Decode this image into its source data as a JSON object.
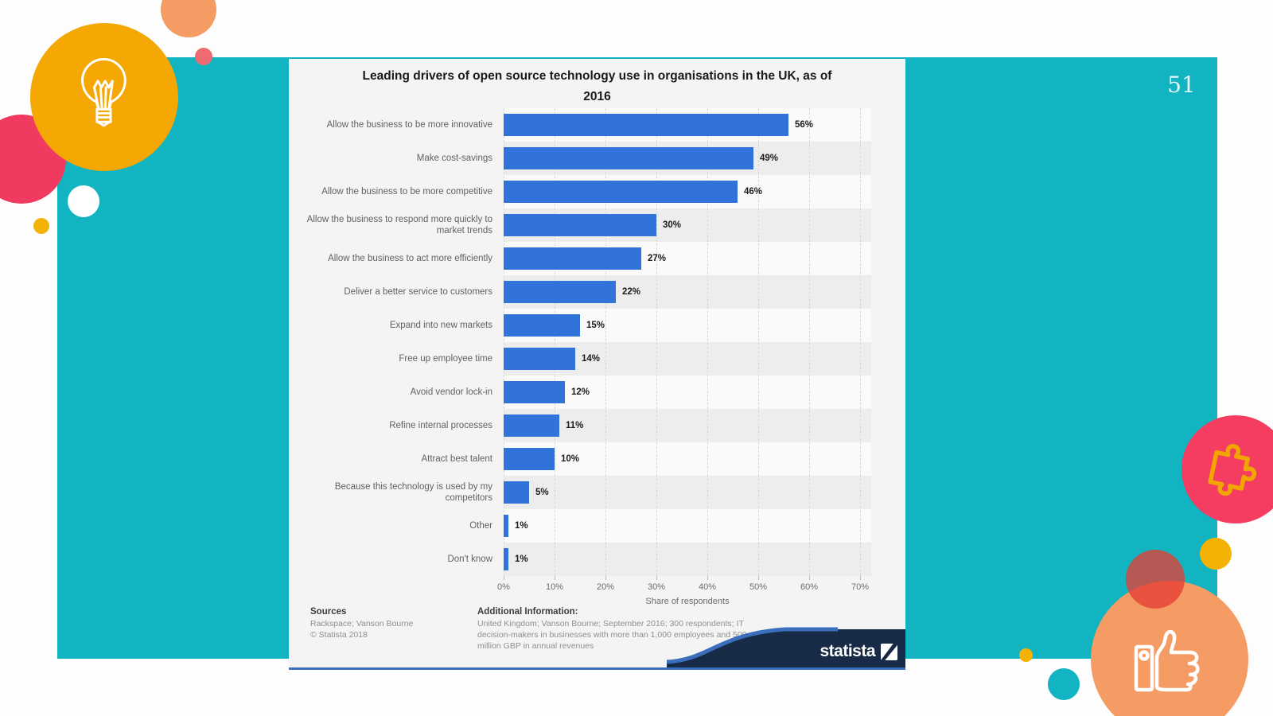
{
  "page": {
    "number": "51"
  },
  "chart": {
    "title_line1": "Leading drivers of open source technology use in organisations in the UK, as of",
    "title_line2": "2016"
  },
  "chart_data": {
    "type": "bar",
    "orientation": "horizontal",
    "title": "Leading drivers of open source technology use in organisations in the UK, as of 2016",
    "categories": [
      "Allow the business to be more innovative",
      "Make cost-savings",
      "Allow the business to be more competitive",
      "Allow the business to respond more quickly to market trends",
      "Allow the business to act more efficiently",
      "Deliver a better service to customers",
      "Expand into new markets",
      "Free up employee time",
      "Avoid vendor lock-in",
      "Refine internal processes",
      "Attract best talent",
      "Because this technology is used by my competitors",
      "Other",
      "Don't know"
    ],
    "values": [
      56,
      49,
      46,
      30,
      27,
      22,
      15,
      14,
      12,
      11,
      10,
      5,
      1,
      1
    ],
    "value_labels": [
      "56%",
      "49%",
      "46%",
      "30%",
      "27%",
      "22%",
      "15%",
      "14%",
      "12%",
      "11%",
      "10%",
      "5%",
      "1%",
      "1%"
    ],
    "ticks": [
      "0%",
      "10%",
      "20%",
      "30%",
      "40%",
      "50%",
      "60%",
      "70%"
    ],
    "xlabel": "Share of respondents",
    "xlim": [
      0,
      70
    ],
    "grid": "vertical-dashed",
    "legend": "none",
    "bar_color": "#3173d8"
  },
  "footer": {
    "sources_title": "Sources",
    "sources_line1": "Rackspace; Vanson Bourne",
    "sources_line2": "© Statista 2018",
    "additional_title": "Additional Information:",
    "additional_lines": [
      "United Kingdom; Vanson Bourne; September 2016; 300 respondents; IT",
      "decision-makers in businesses with more than 1,000 employees and 500",
      "million GBP in annual revenues"
    ],
    "brand": "statista"
  },
  "colors": {
    "teal_background": "#12b4c1",
    "bar_blue": "#3173d8",
    "panel_background": "#f4f4f4",
    "stripe_gray": "#ededed",
    "navy_wave": "#172b47",
    "wave_blue": "#3b6fbb",
    "accent_yellow": "#f5a703",
    "accent_orange": "#f59b64",
    "accent_pink": "#f43d60",
    "accent_crimson": "#f03a5f",
    "puzzle_outline": "#f0a500"
  }
}
